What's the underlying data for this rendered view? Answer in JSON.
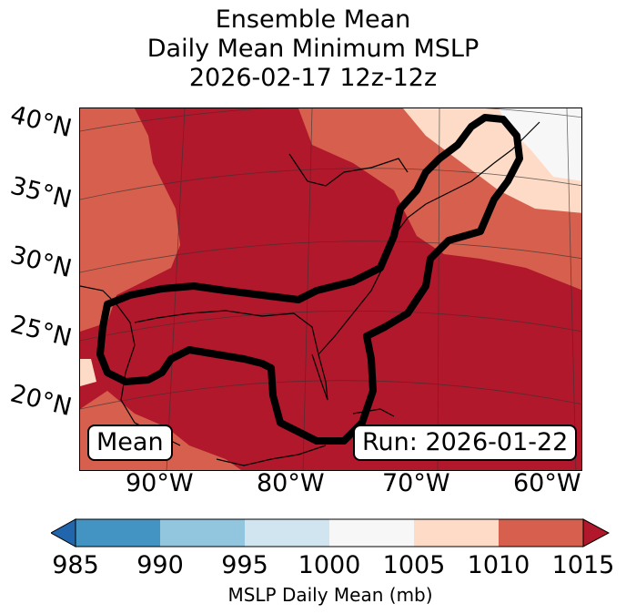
{
  "title_lines": [
    "Ensemble Mean",
    "Daily Mean Minimum MSLP",
    "2026-02-17 12z-12z"
  ],
  "lat_labels": [
    "40°N",
    "35°N",
    "30°N",
    "25°N",
    "20°N"
  ],
  "lon_labels": [
    "90°W",
    "80°W",
    "70°W",
    "60°W"
  ],
  "badges": {
    "mean": "Mean",
    "run": "Run: 2026-01-22"
  },
  "colorbar": {
    "label": "MSLP Daily Mean (mb)",
    "ticks": [
      "985",
      "990",
      "995",
      "1000",
      "1005",
      "1010",
      "1015"
    ],
    "colors": [
      "#2166ac",
      "#4393c3",
      "#92c5de",
      "#d1e5f0",
      "#f7f7f7",
      "#fddbc7",
      "#d6604d",
      "#b2182b"
    ]
  },
  "map_colors": {
    "ocean_land_dark": "#b2182b",
    "mid": "#d6604d",
    "light": "#fddbc7",
    "white": "#f7f7f7",
    "contour": "#000000"
  }
}
